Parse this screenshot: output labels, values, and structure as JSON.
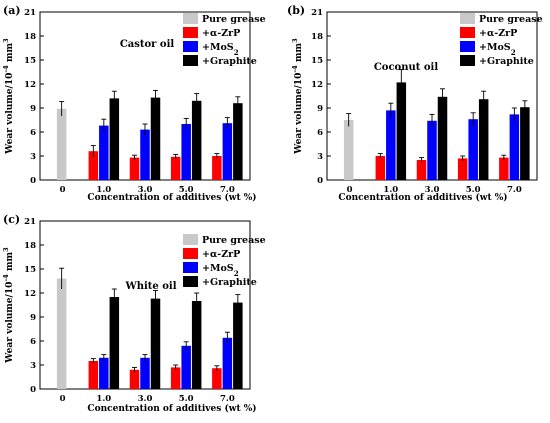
{
  "chart_data": [
    {
      "type": "bar",
      "panel_label": "(a)",
      "oil": "Castor oil",
      "categories": [
        "0",
        "1.0",
        "3.0",
        "5.0",
        "7.0"
      ],
      "ylim": [
        0,
        21
      ],
      "yticks": [
        "0",
        "3",
        "6",
        "9",
        "12",
        "15",
        "18",
        "21"
      ],
      "xlabel": "Concentration of additives (wt %)",
      "ylabel": "Wear volume/10⁻⁴ mm³",
      "legend": [
        "Pure grease",
        "+α-ZrP",
        "+MoS₂",
        "+Graphite"
      ],
      "series": [
        {
          "name": "Pure grease",
          "color": "#c8c8c8",
          "values": [
            8.9,
            null,
            null,
            null,
            null
          ],
          "errors": [
            0.9,
            null,
            null,
            null,
            null
          ]
        },
        {
          "name": "+α-ZrP",
          "color": "#ff0000",
          "values": [
            null,
            3.6,
            2.8,
            2.9,
            3.0
          ],
          "errors": [
            null,
            0.7,
            0.3,
            0.3,
            0.3
          ]
        },
        {
          "name": "+MoS₂",
          "color": "#0000ff",
          "values": [
            null,
            6.8,
            6.3,
            7.0,
            7.1
          ],
          "errors": [
            null,
            0.8,
            0.7,
            0.7,
            0.7
          ]
        },
        {
          "name": "+Graphite",
          "color": "#000000",
          "values": [
            null,
            10.2,
            10.3,
            9.9,
            9.6
          ],
          "errors": [
            null,
            0.9,
            0.9,
            0.9,
            0.8
          ]
        }
      ]
    },
    {
      "type": "bar",
      "panel_label": "(b)",
      "oil": "Coconut oil",
      "categories": [
        "0",
        "1.0",
        "3.0",
        "5.0",
        "7.0"
      ],
      "ylim": [
        0,
        21
      ],
      "yticks": [
        "0",
        "3",
        "6",
        "9",
        "12",
        "15",
        "18",
        "21"
      ],
      "xlabel": "Concentration of additives (wt %)",
      "ylabel": "Wear volume/10⁻⁴ mm³",
      "legend": [
        "Pure grease",
        "+α-ZrP",
        "+MoS₂",
        "+Graphite"
      ],
      "series": [
        {
          "name": "Pure grease",
          "color": "#c8c8c8",
          "values": [
            7.5,
            null,
            null,
            null,
            null
          ],
          "errors": [
            0.8,
            null,
            null,
            null,
            null
          ]
        },
        {
          "name": "+α-ZrP",
          "color": "#ff0000",
          "values": [
            null,
            3.0,
            2.5,
            2.7,
            2.8
          ],
          "errors": [
            null,
            0.3,
            0.3,
            0.3,
            0.3
          ]
        },
        {
          "name": "+MoS₂",
          "color": "#0000ff",
          "values": [
            null,
            8.7,
            7.4,
            7.6,
            8.2
          ],
          "errors": [
            null,
            0.9,
            0.8,
            0.8,
            0.8
          ]
        },
        {
          "name": "+Graphite",
          "color": "#000000",
          "values": [
            null,
            12.2,
            10.4,
            10.1,
            9.1
          ],
          "errors": [
            null,
            1.6,
            1.0,
            1.0,
            0.8
          ]
        }
      ]
    },
    {
      "type": "bar",
      "panel_label": "(c)",
      "oil": "White oil",
      "categories": [
        "0",
        "1.0",
        "3.0",
        "5.0",
        "7.0"
      ],
      "ylim": [
        0,
        21
      ],
      "yticks": [
        "0",
        "3",
        "6",
        "9",
        "12",
        "15",
        "18",
        "21"
      ],
      "xlabel": "Concentration of additives (wt %)",
      "ylabel": "Wear volume/10⁻⁴ mm³",
      "legend": [
        "Pure grease",
        "+α-ZrP",
        "+MoS₂",
        "+Graphite"
      ],
      "series": [
        {
          "name": "Pure grease",
          "color": "#c8c8c8",
          "values": [
            13.8,
            null,
            null,
            null,
            null
          ],
          "errors": [
            1.3,
            null,
            null,
            null,
            null
          ]
        },
        {
          "name": "+α-ZrP",
          "color": "#ff0000",
          "values": [
            null,
            3.5,
            2.4,
            2.7,
            2.6
          ],
          "errors": [
            null,
            0.3,
            0.3,
            0.3,
            0.3
          ]
        },
        {
          "name": "+MoS₂",
          "color": "#0000ff",
          "values": [
            null,
            3.9,
            3.9,
            5.4,
            6.4
          ],
          "errors": [
            null,
            0.4,
            0.4,
            0.5,
            0.7
          ]
        },
        {
          "name": "+Graphite",
          "color": "#000000",
          "values": [
            null,
            11.5,
            11.3,
            11.0,
            10.8
          ],
          "errors": [
            null,
            1.0,
            1.0,
            1.0,
            1.0
          ]
        }
      ]
    }
  ]
}
